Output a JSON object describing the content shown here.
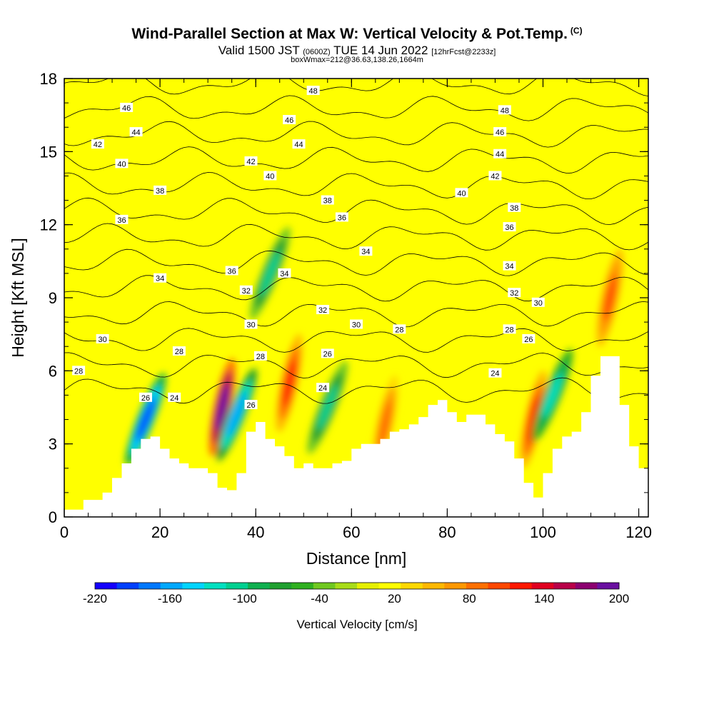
{
  "header": {
    "title": "Wind-Parallel Section at Max W: Vertical Velocity & Pot.Temp.",
    "title_tag": "(C)",
    "valid_prefix": "Valid 1500 JST",
    "valid_utc": "(0600Z)",
    "valid_date": "TUE 14 Jun 2022",
    "forecast": "[12hrFcst@2233z]",
    "box_info": "boxWmax=212@36.63,138.26,1664m"
  },
  "chart_data": {
    "type": "heatmap",
    "title": "Wind-Parallel Section at Max W: Vertical Velocity & Pot.Temp.",
    "xlabel": "Distance [nm]",
    "ylabel": "Height [Kft MSL]",
    "xlim": [
      0,
      122
    ],
    "ylim": [
      0,
      18
    ],
    "x_ticks": [
      0,
      20,
      40,
      60,
      80,
      100,
      120
    ],
    "y_ticks": [
      0,
      3,
      6,
      9,
      12,
      15,
      18
    ],
    "colorbar": {
      "label": "Vertical Velocity [cm/s]",
      "min": -220,
      "max": 200,
      "tick_values": [
        -220,
        -160,
        -100,
        -40,
        20,
        80,
        140,
        200
      ],
      "colors": [
        "#1400ff",
        "#0040ff",
        "#0078ff",
        "#00a8ff",
        "#00d4ff",
        "#00e0c0",
        "#00d090",
        "#10b050",
        "#20a030",
        "#30b020",
        "#70c820",
        "#a8dc18",
        "#e6f000",
        "#ffff00",
        "#ffd800",
        "#ffb800",
        "#ff9800",
        "#ff7000",
        "#ff4800",
        "#ff1800",
        "#e00020",
        "#b80048",
        "#8c0070",
        "#6a10a0"
      ]
    },
    "theta_contours": {
      "label": "Potential Temperature (contours)",
      "levels": [
        24,
        26,
        28,
        30,
        32,
        34,
        36,
        38,
        40,
        42,
        44,
        46,
        48
      ]
    },
    "terrain": {
      "x": [
        0,
        4,
        8,
        10,
        12,
        14,
        16,
        18,
        20,
        22,
        24,
        26,
        28,
        30,
        32,
        34,
        36,
        38,
        40,
        42,
        44,
        46,
        48,
        50,
        52,
        54,
        56,
        58,
        60,
        62,
        64,
        66,
        68,
        70,
        72,
        74,
        76,
        78,
        80,
        82,
        84,
        86,
        88,
        90,
        92,
        94,
        96,
        98,
        100,
        102,
        104,
        106,
        108,
        110,
        112,
        114,
        116,
        118,
        120,
        122
      ],
      "height": [
        0.3,
        0.7,
        1.0,
        1.6,
        2.2,
        2.8,
        3.2,
        3.3,
        2.8,
        2.4,
        2.2,
        2.0,
        2.0,
        1.8,
        1.2,
        1.1,
        1.8,
        3.5,
        3.9,
        3.2,
        2.9,
        2.5,
        2.0,
        2.2,
        2.0,
        2.0,
        2.2,
        2.3,
        2.8,
        3.0,
        3.0,
        3.2,
        3.5,
        3.6,
        3.8,
        4.1,
        4.6,
        4.8,
        4.3,
        3.9,
        4.2,
        4.2,
        3.8,
        3.4,
        3.1,
        2.4,
        1.4,
        0.8,
        1.8,
        2.8,
        3.3,
        3.5,
        4.3,
        5.8,
        6.6,
        6.6,
        4.6,
        2.9,
        2.0,
        1.9
      ]
    },
    "vertical_velocity_features": [
      {
        "x": 17,
        "height": 4.0,
        "value": -200,
        "kind": "downdraft"
      },
      {
        "x": 33,
        "height": 4.5,
        "value": 200,
        "kind": "updraft"
      },
      {
        "x": 36,
        "height": 4.2,
        "value": -160,
        "kind": "downdraft"
      },
      {
        "x": 43,
        "height": 10.0,
        "value": -100,
        "kind": "downdraft"
      },
      {
        "x": 47,
        "height": 5.5,
        "value": 120,
        "kind": "updraft"
      },
      {
        "x": 55,
        "height": 4.5,
        "value": -100,
        "kind": "downdraft"
      },
      {
        "x": 67,
        "height": 3.8,
        "value": 80,
        "kind": "updraft"
      },
      {
        "x": 98,
        "height": 4.0,
        "value": 120,
        "kind": "updraft"
      },
      {
        "x": 102,
        "height": 5.0,
        "value": -120,
        "kind": "downdraft"
      },
      {
        "x": 114,
        "height": 9.0,
        "value": 100,
        "kind": "updraft"
      }
    ],
    "contour_labels": [
      {
        "x": 13,
        "height": 16.8,
        "text": "46"
      },
      {
        "x": 52,
        "height": 17.5,
        "text": "48"
      },
      {
        "x": 92,
        "height": 16.7,
        "text": "48"
      },
      {
        "x": 15,
        "height": 15.8,
        "text": "44"
      },
      {
        "x": 47,
        "height": 16.3,
        "text": "46"
      },
      {
        "x": 91,
        "height": 15.8,
        "text": "46"
      },
      {
        "x": 7,
        "height": 15.3,
        "text": "42"
      },
      {
        "x": 49,
        "height": 15.3,
        "text": "44"
      },
      {
        "x": 91,
        "height": 14.9,
        "text": "44"
      },
      {
        "x": 12,
        "height": 14.5,
        "text": "40"
      },
      {
        "x": 39,
        "height": 14.6,
        "text": "42"
      },
      {
        "x": 90,
        "height": 14.0,
        "text": "42"
      },
      {
        "x": 20,
        "height": 13.4,
        "text": "38"
      },
      {
        "x": 43,
        "height": 14.0,
        "text": "40"
      },
      {
        "x": 83,
        "height": 13.3,
        "text": "40"
      },
      {
        "x": 55,
        "height": 13.0,
        "text": "38"
      },
      {
        "x": 94,
        "height": 12.7,
        "text": "38"
      },
      {
        "x": 12,
        "height": 12.2,
        "text": "36"
      },
      {
        "x": 58,
        "height": 12.3,
        "text": "36"
      },
      {
        "x": 93,
        "height": 11.9,
        "text": "36"
      },
      {
        "x": 63,
        "height": 10.9,
        "text": "34"
      },
      {
        "x": 93,
        "height": 10.3,
        "text": "34"
      },
      {
        "x": 35,
        "height": 10.1,
        "text": "36"
      },
      {
        "x": 46,
        "height": 10.0,
        "text": "34"
      },
      {
        "x": 20,
        "height": 9.8,
        "text": "34"
      },
      {
        "x": 38,
        "height": 9.3,
        "text": "32"
      },
      {
        "x": 94,
        "height": 9.2,
        "text": "32"
      },
      {
        "x": 54,
        "height": 8.5,
        "text": "32"
      },
      {
        "x": 99,
        "height": 8.8,
        "text": "30"
      },
      {
        "x": 61,
        "height": 7.9,
        "text": "30"
      },
      {
        "x": 39,
        "height": 7.9,
        "text": "30"
      },
      {
        "x": 70,
        "height": 7.7,
        "text": "28"
      },
      {
        "x": 93,
        "height": 7.7,
        "text": "28"
      },
      {
        "x": 8,
        "height": 7.3,
        "text": "30"
      },
      {
        "x": 97,
        "height": 7.3,
        "text": "26"
      },
      {
        "x": 24,
        "height": 6.8,
        "text": "28"
      },
      {
        "x": 41,
        "height": 6.6,
        "text": "28"
      },
      {
        "x": 55,
        "height": 6.7,
        "text": "26"
      },
      {
        "x": 3,
        "height": 6.0,
        "text": "28"
      },
      {
        "x": 90,
        "height": 5.9,
        "text": "24"
      },
      {
        "x": 54,
        "height": 5.3,
        "text": "24"
      },
      {
        "x": 23,
        "height": 4.9,
        "text": "24"
      },
      {
        "x": 17,
        "height": 4.9,
        "text": "26"
      },
      {
        "x": 39,
        "height": 4.6,
        "text": "26"
      }
    ]
  }
}
